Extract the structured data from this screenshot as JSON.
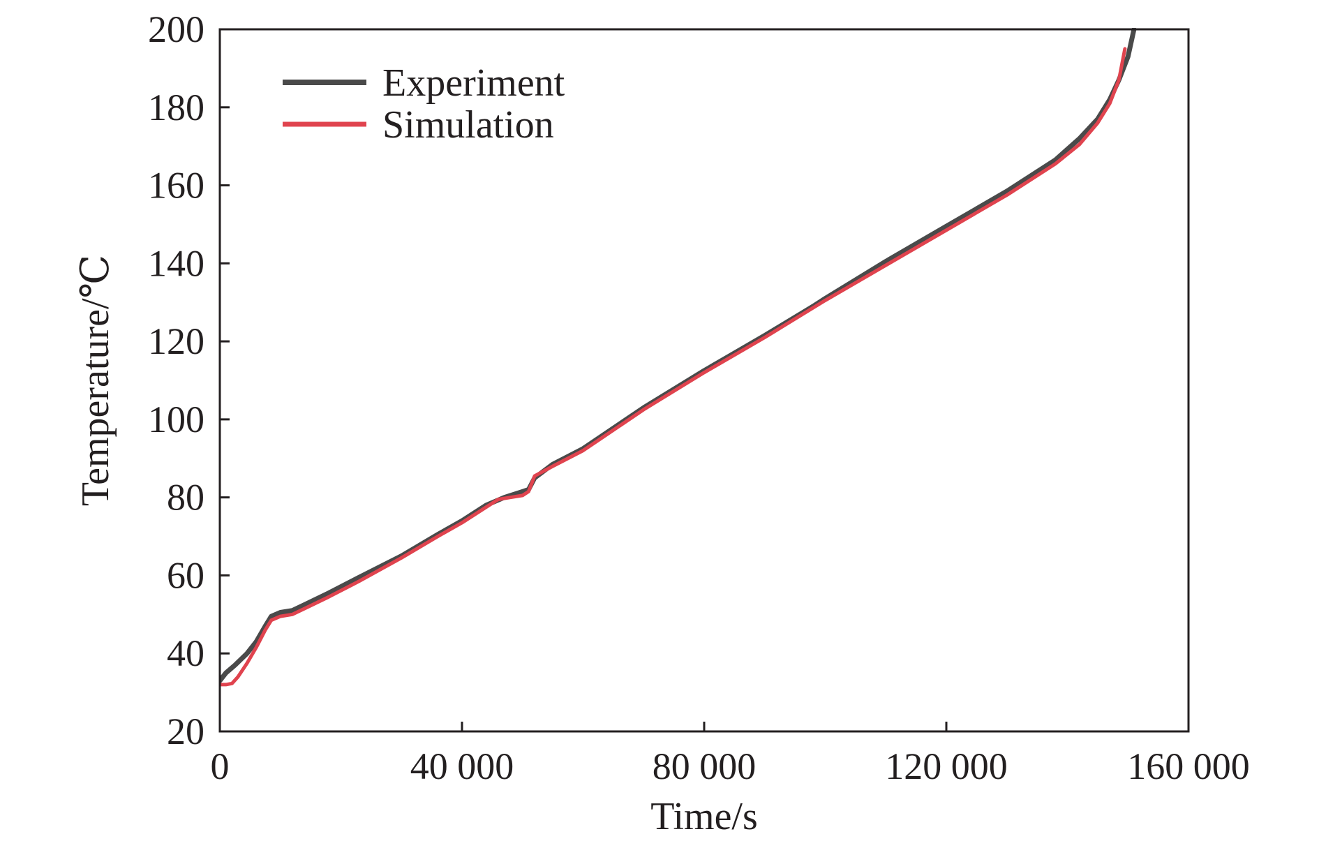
{
  "chart_data": {
    "type": "line",
    "title": "",
    "xlabel": "Time/s",
    "ylabel": "Temperature/℃",
    "xlim": [
      0,
      160000
    ],
    "ylim": [
      20,
      200
    ],
    "xticks": [
      0,
      40000,
      80000,
      120000,
      160000
    ],
    "xtick_labels": [
      "0",
      "40 000",
      "80 000",
      "120 000",
      "160 000"
    ],
    "yticks": [
      20,
      40,
      60,
      80,
      100,
      120,
      140,
      160,
      180,
      200
    ],
    "ytick_labels": [
      "20",
      "40",
      "60",
      "80",
      "100",
      "120",
      "140",
      "160",
      "180",
      "200"
    ],
    "grid": false,
    "legend_position": "top-left",
    "series": [
      {
        "name": "Experiment",
        "color": "#4a4a4a",
        "points": [
          [
            0,
            33
          ],
          [
            1000,
            35
          ],
          [
            2500,
            37
          ],
          [
            4500,
            40
          ],
          [
            6000,
            43
          ],
          [
            7500,
            47
          ],
          [
            8500,
            49.5
          ],
          [
            10000,
            50.5
          ],
          [
            12000,
            51
          ],
          [
            14000,
            52.5
          ],
          [
            18000,
            55.5
          ],
          [
            23000,
            59.5
          ],
          [
            30000,
            65
          ],
          [
            36000,
            70.5
          ],
          [
            40000,
            74
          ],
          [
            44000,
            78
          ],
          [
            47000,
            80
          ],
          [
            50000,
            81.5
          ],
          [
            51000,
            82
          ],
          [
            52000,
            85
          ],
          [
            55000,
            88.5
          ],
          [
            60000,
            92.5
          ],
          [
            70000,
            103
          ],
          [
            80000,
            112.5
          ],
          [
            90000,
            121.5
          ],
          [
            98000,
            129
          ],
          [
            100000,
            131
          ],
          [
            110000,
            140.5
          ],
          [
            120000,
            149.5
          ],
          [
            130000,
            158.5
          ],
          [
            138000,
            166.5
          ],
          [
            142000,
            172
          ],
          [
            145000,
            177
          ],
          [
            147000,
            182
          ],
          [
            148500,
            187
          ],
          [
            150000,
            193
          ],
          [
            151000,
            200
          ]
        ]
      },
      {
        "name": "Simulation",
        "color": "#e0434e",
        "points": [
          [
            0,
            32
          ],
          [
            1000,
            32
          ],
          [
            2000,
            32.3
          ],
          [
            3000,
            34
          ],
          [
            4500,
            37.5
          ],
          [
            6000,
            41.5
          ],
          [
            7500,
            46
          ],
          [
            8500,
            48.5
          ],
          [
            10000,
            49.5
          ],
          [
            12000,
            50
          ],
          [
            14000,
            51.5
          ],
          [
            18000,
            54.5
          ],
          [
            23000,
            58.5
          ],
          [
            30000,
            64.5
          ],
          [
            36000,
            70
          ],
          [
            40000,
            73.5
          ],
          [
            44000,
            77.5
          ],
          [
            46000,
            79.5
          ],
          [
            48000,
            80
          ],
          [
            50000,
            80.5
          ],
          [
            51000,
            81.5
          ],
          [
            52000,
            85.5
          ],
          [
            55000,
            88
          ],
          [
            60000,
            92
          ],
          [
            70000,
            102.5
          ],
          [
            80000,
            112
          ],
          [
            90000,
            121
          ],
          [
            100000,
            130.5
          ],
          [
            110000,
            139.5
          ],
          [
            120000,
            148.5
          ],
          [
            130000,
            157.5
          ],
          [
            138000,
            165.5
          ],
          [
            142000,
            170.5
          ],
          [
            145000,
            176
          ],
          [
            147000,
            181
          ],
          [
            148500,
            187
          ],
          [
            149500,
            195
          ]
        ]
      }
    ]
  }
}
